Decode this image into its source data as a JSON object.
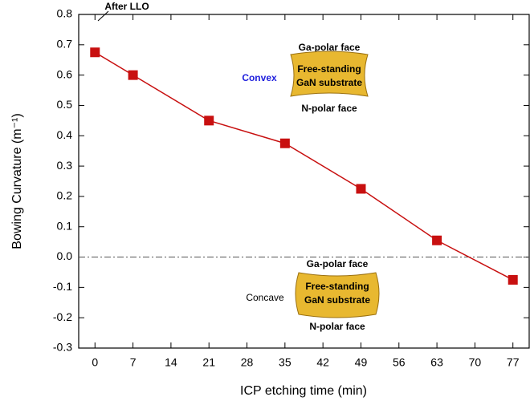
{
  "chart_data": {
    "type": "line",
    "xlabel": "ICP etching time (min)",
    "ylabel": "Bowing Curvature (m⁻¹)",
    "x": [
      0,
      7,
      21,
      35,
      49,
      63,
      77
    ],
    "series": [
      {
        "color": "#c81010",
        "values": [
          0.675,
          0.6,
          0.45,
          0.375,
          0.225,
          0.055,
          -0.075
        ]
      }
    ],
    "xlim": [
      -3,
      80
    ],
    "xticks": [
      0,
      7,
      14,
      21,
      28,
      35,
      42,
      49,
      56,
      63,
      70,
      77
    ],
    "ylim": [
      -0.3,
      0.8
    ],
    "yticks": [
      -0.3,
      -0.2,
      -0.1,
      {
        "value": 0,
        "label": "0.0"
      },
      0.1,
      0.2,
      0.3,
      0.4,
      0.5,
      0.6,
      0.7,
      0.8
    ],
    "reference_line": 0,
    "annotations": {
      "after_llo": "After LLO",
      "convex": {
        "label": "Convex",
        "top": "Ga-polar face",
        "body": [
          "Free-standing",
          "GaN substrate"
        ],
        "bottom": "N-polar face"
      },
      "concave": {
        "label": "Concave",
        "top": "Ga-polar face",
        "body": [
          "Free-standing",
          "GaN substrate"
        ],
        "bottom": "N-polar face"
      }
    }
  }
}
